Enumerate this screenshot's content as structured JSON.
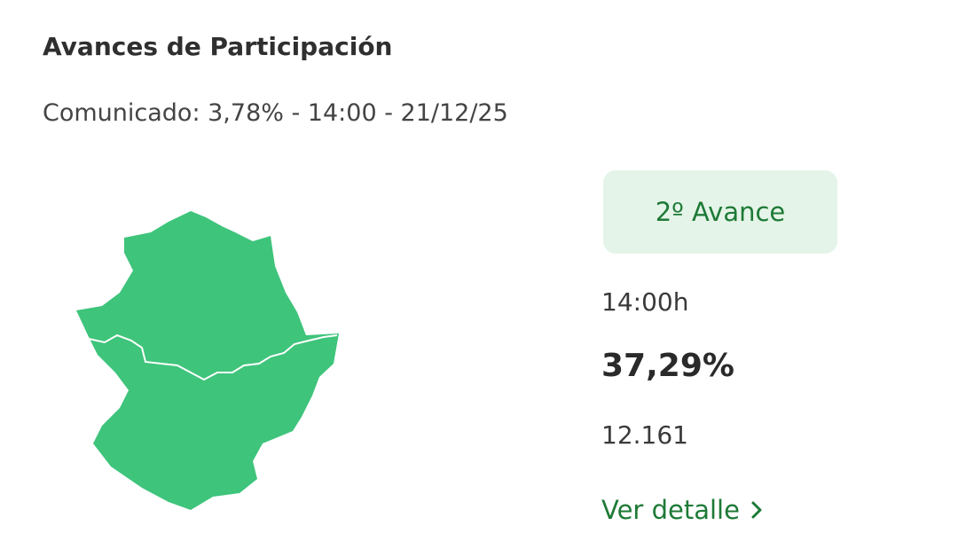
{
  "header": {
    "title": "Avances de Participación",
    "subtitle": "Comunicado: 3,78% - 14:00 - 21/12/25"
  },
  "badge": {
    "label": "2º Avance"
  },
  "stats": {
    "time": "14:00h",
    "percent": "37,29%",
    "count": "12.161"
  },
  "link": {
    "label": "Ver detalle"
  }
}
